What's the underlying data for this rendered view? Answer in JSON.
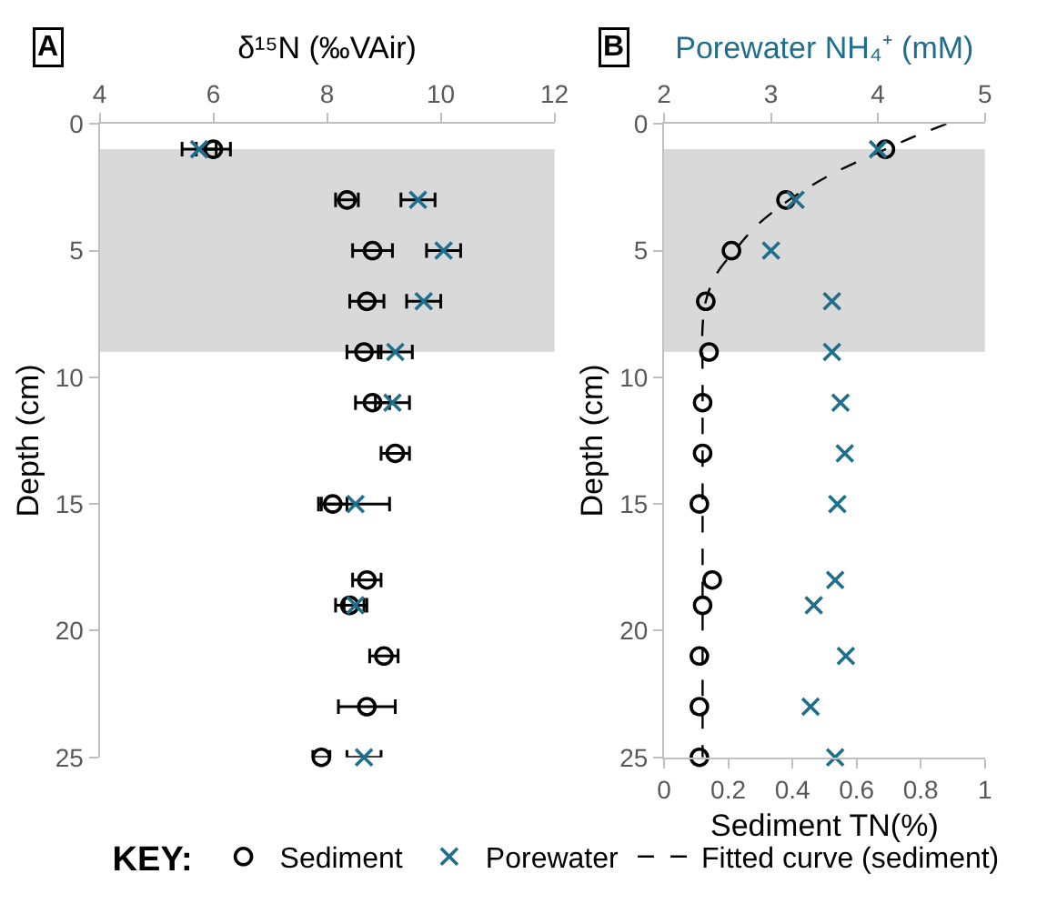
{
  "chart_data": [
    {
      "type": "scatter",
      "xlabel": "δ¹⁵N (‰VAir)",
      "ylabel": "Depth (cm)",
      "annotations": [
        "A"
      ],
      "xlim": [
        4,
        12
      ],
      "xticks": [
        4,
        6,
        8,
        10,
        12
      ],
      "ylim": [
        25,
        0
      ],
      "yticks": [
        0,
        5,
        10,
        15,
        20,
        25
      ],
      "grid": false,
      "legend": "bottom",
      "legend_title": "KEY:",
      "bands": [
        {
          "axis": "y",
          "from": 1,
          "to": 9,
          "color": "#d9d9d9"
        }
      ],
      "series": [
        {
          "name": "Sediment",
          "color": "#000000",
          "marker": "circle",
          "x": [
            6.0,
            8.35,
            8.8,
            8.7,
            8.65,
            8.8,
            9.2,
            8.1,
            8.7,
            8.4,
            9.0,
            8.7,
            7.9
          ],
          "values": [
            1,
            3,
            5,
            7,
            9,
            11,
            13,
            15,
            18,
            19,
            21,
            23,
            25
          ],
          "xerrors": [
            0.3,
            0.2,
            0.35,
            0.3,
            0.3,
            0.3,
            0.25,
            0.25,
            0.25,
            0.25,
            0.25,
            0.5,
            0.15
          ]
        },
        {
          "name": "Porewater",
          "color": "#1f6e8c",
          "marker": "cross",
          "x": [
            5.75,
            9.6,
            10.05,
            9.7,
            9.2,
            9.15,
            8.5,
            8.5,
            8.65
          ],
          "values": [
            1,
            3,
            5,
            7,
            9,
            11,
            15,
            19,
            25
          ],
          "xerrors": [
            0.3,
            0.3,
            0.3,
            0.3,
            0.3,
            0.3,
            0.6,
            0.2,
            0.3
          ]
        }
      ]
    },
    {
      "type": "scatter",
      "xlabel": "Sediment TN(%)",
      "x2label": "Porewater NH₄⁺ (mM)",
      "ylabel": "Depth (cm)",
      "annotations": [
        "B"
      ],
      "xlim": [
        0,
        1
      ],
      "xticks": [
        0,
        0.2,
        0.4,
        0.6,
        0.8,
        1
      ],
      "x2lim": [
        2,
        5
      ],
      "x2ticks": [
        2,
        3,
        4,
        5
      ],
      "ylim": [
        25,
        0
      ],
      "yticks": [
        0,
        5,
        10,
        15,
        20,
        25
      ],
      "grid": false,
      "legend": "bottom",
      "bands": [
        {
          "axis": "y",
          "from": 1,
          "to": 9,
          "color": "#d9d9d9"
        }
      ],
      "series": [
        {
          "color": "#000000",
          "marker": "circle",
          "x": [
            0.69,
            0.38,
            0.21,
            0.13,
            0.14,
            0.12,
            0.12,
            0.11,
            0.15,
            0.12,
            0.11,
            0.11,
            0.11
          ],
          "values": [
            1,
            3,
            5,
            7,
            9,
            11,
            13,
            15,
            18,
            19,
            21,
            23,
            25
          ]
        },
        {
          "color": "#1f6e8c",
          "marker": "cross",
          "axis": "x2",
          "x": [
            4.0,
            3.23,
            3.0,
            3.57,
            3.57,
            3.65,
            3.69,
            3.62,
            3.6,
            3.4,
            3.7,
            3.37,
            3.6
          ],
          "values": [
            1,
            3,
            5,
            7,
            9,
            11,
            13,
            15,
            18,
            19,
            21,
            23,
            25
          ]
        },
        {
          "name": "Fitted curve (sediment)",
          "type": "line",
          "color": "#000000",
          "marker": "none",
          "line_style": "dashed",
          "x": [
            0.88,
            0.78,
            0.69,
            0.52,
            0.39,
            0.29,
            0.22,
            0.16,
            0.13,
            0.12,
            0.12,
            0.12
          ],
          "values": [
            0,
            0.5,
            1,
            2,
            3,
            4,
            5,
            6,
            7,
            8,
            10,
            25
          ]
        }
      ]
    }
  ]
}
